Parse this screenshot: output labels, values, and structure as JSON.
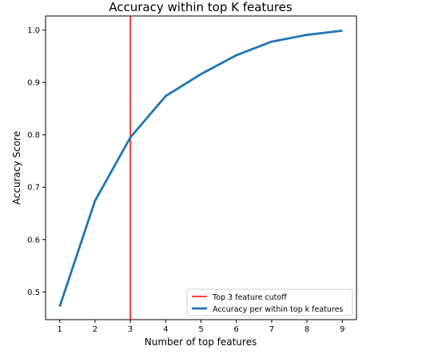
{
  "chart_data": {
    "type": "line",
    "title": "Accuracy within top K features",
    "xlabel": "Number of top features",
    "ylabel": "Accuracy Score",
    "x": [
      1,
      2,
      3,
      4,
      5,
      6,
      7,
      8,
      9
    ],
    "xlim": [
      0.6,
      9.4
    ],
    "ylim": [
      0.447,
      1.027
    ],
    "xticks": [
      "1",
      "2",
      "3",
      "4",
      "5",
      "6",
      "7",
      "8",
      "9"
    ],
    "yticks": [
      "0.5",
      "0.6",
      "0.7",
      "0.8",
      "0.9",
      "1.0"
    ],
    "grid": false,
    "legend_position": "lower-right",
    "series": [
      {
        "name": "Accuracy per within top k features",
        "color": "#1f77b4",
        "values": [
          0.472,
          0.674,
          0.795,
          0.874,
          0.916,
          0.952,
          0.978,
          0.991,
          0.999
        ]
      }
    ],
    "annotations": [
      {
        "type": "vline",
        "x": 3,
        "color": "#ff0000",
        "label": "Top 3 feature cutoff"
      }
    ]
  }
}
